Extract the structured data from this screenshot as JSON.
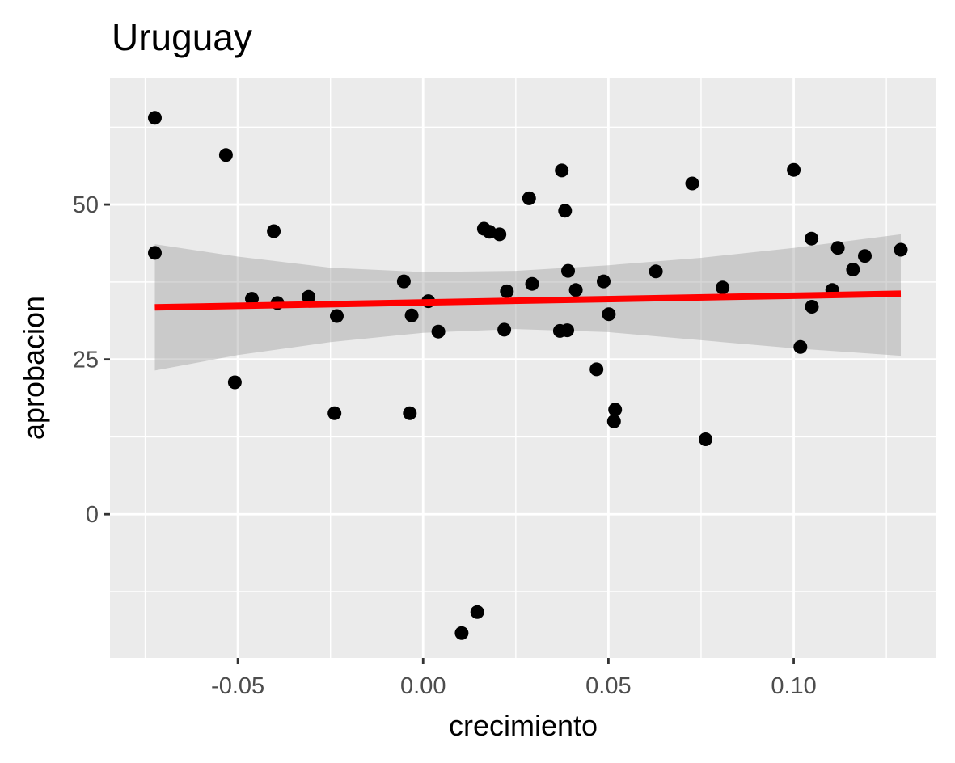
{
  "chart_data": {
    "type": "scatter",
    "title": "Uruguay",
    "xlabel": "crecimiento",
    "ylabel": "aprobacion",
    "xlim": [
      -0.0845,
      0.1385
    ],
    "ylim": [
      -23.2,
      70.5
    ],
    "x_ticks": [
      -0.05,
      0.0,
      0.05,
      0.1
    ],
    "x_tick_labels": [
      "-0.05",
      "0.00",
      "0.05",
      "0.10"
    ],
    "y_ticks": [
      0,
      25,
      50
    ],
    "y_tick_labels": [
      "0",
      "25",
      "50"
    ],
    "grid": true,
    "legend": "none",
    "colors": {
      "panel": "#EBEBEB",
      "grid": "#FFFFFF",
      "points": "#000000",
      "fit_line": "#FF0000",
      "confidence_band": "#999999"
    },
    "points": [
      {
        "x": -0.0724,
        "y": 64.0
      },
      {
        "x": -0.0724,
        "y": 42.2
      },
      {
        "x": -0.0532,
        "y": 58.0
      },
      {
        "x": -0.0508,
        "y": 21.3
      },
      {
        "x": -0.0462,
        "y": 34.8
      },
      {
        "x": -0.0403,
        "y": 45.7
      },
      {
        "x": -0.0393,
        "y": 34.1
      },
      {
        "x": -0.0309,
        "y": 35.1
      },
      {
        "x": -0.0233,
        "y": 32.0
      },
      {
        "x": -0.0239,
        "y": 16.3
      },
      {
        "x": -0.0052,
        "y": 37.6
      },
      {
        "x": -0.0036,
        "y": 16.3
      },
      {
        "x": -0.0031,
        "y": 32.1
      },
      {
        "x": 0.0014,
        "y": 34.4
      },
      {
        "x": 0.0041,
        "y": 29.5
      },
      {
        "x": 0.0104,
        "y": -19.2
      },
      {
        "x": 0.0146,
        "y": -15.8
      },
      {
        "x": 0.0164,
        "y": 46.1
      },
      {
        "x": 0.0179,
        "y": 45.6
      },
      {
        "x": 0.0206,
        "y": 45.2
      },
      {
        "x": 0.0219,
        "y": 29.8
      },
      {
        "x": 0.0226,
        "y": 36.0
      },
      {
        "x": 0.0286,
        "y": 51.0
      },
      {
        "x": 0.0294,
        "y": 37.2
      },
      {
        "x": 0.0369,
        "y": 29.6
      },
      {
        "x": 0.0374,
        "y": 55.5
      },
      {
        "x": 0.0383,
        "y": 49.0
      },
      {
        "x": 0.0389,
        "y": 29.7
      },
      {
        "x": 0.0391,
        "y": 39.3
      },
      {
        "x": 0.0412,
        "y": 36.2
      },
      {
        "x": 0.0468,
        "y": 23.4
      },
      {
        "x": 0.0487,
        "y": 37.6
      },
      {
        "x": 0.0501,
        "y": 32.3
      },
      {
        "x": 0.0515,
        "y": 15.0
      },
      {
        "x": 0.0518,
        "y": 16.9
      },
      {
        "x": 0.0628,
        "y": 39.2
      },
      {
        "x": 0.0726,
        "y": 53.4
      },
      {
        "x": 0.0762,
        "y": 12.1
      },
      {
        "x": 0.0808,
        "y": 36.6
      },
      {
        "x": 0.1,
        "y": 55.6
      },
      {
        "x": 0.1018,
        "y": 27.0
      },
      {
        "x": 0.1048,
        "y": 44.5
      },
      {
        "x": 0.1049,
        "y": 33.5
      },
      {
        "x": 0.1104,
        "y": 36.2
      },
      {
        "x": 0.1119,
        "y": 43.0
      },
      {
        "x": 0.116,
        "y": 39.5
      },
      {
        "x": 0.1192,
        "y": 41.7
      },
      {
        "x": 0.1289,
        "y": 42.7
      }
    ],
    "fit_line": {
      "x": [
        -0.0724,
        0.1289
      ],
      "y": [
        33.4,
        35.6
      ]
    },
    "confidence_band": {
      "x": [
        -0.0724,
        -0.05,
        -0.025,
        0.0,
        0.025,
        0.05,
        0.075,
        0.1,
        0.1289
      ],
      "lower": [
        23.2,
        25.7,
        27.8,
        29.3,
        29.9,
        29.4,
        28.1,
        26.8,
        25.6
      ],
      "upper": [
        43.6,
        41.6,
        39.8,
        39.1,
        39.3,
        40.2,
        41.4,
        43.0,
        45.2
      ]
    }
  }
}
